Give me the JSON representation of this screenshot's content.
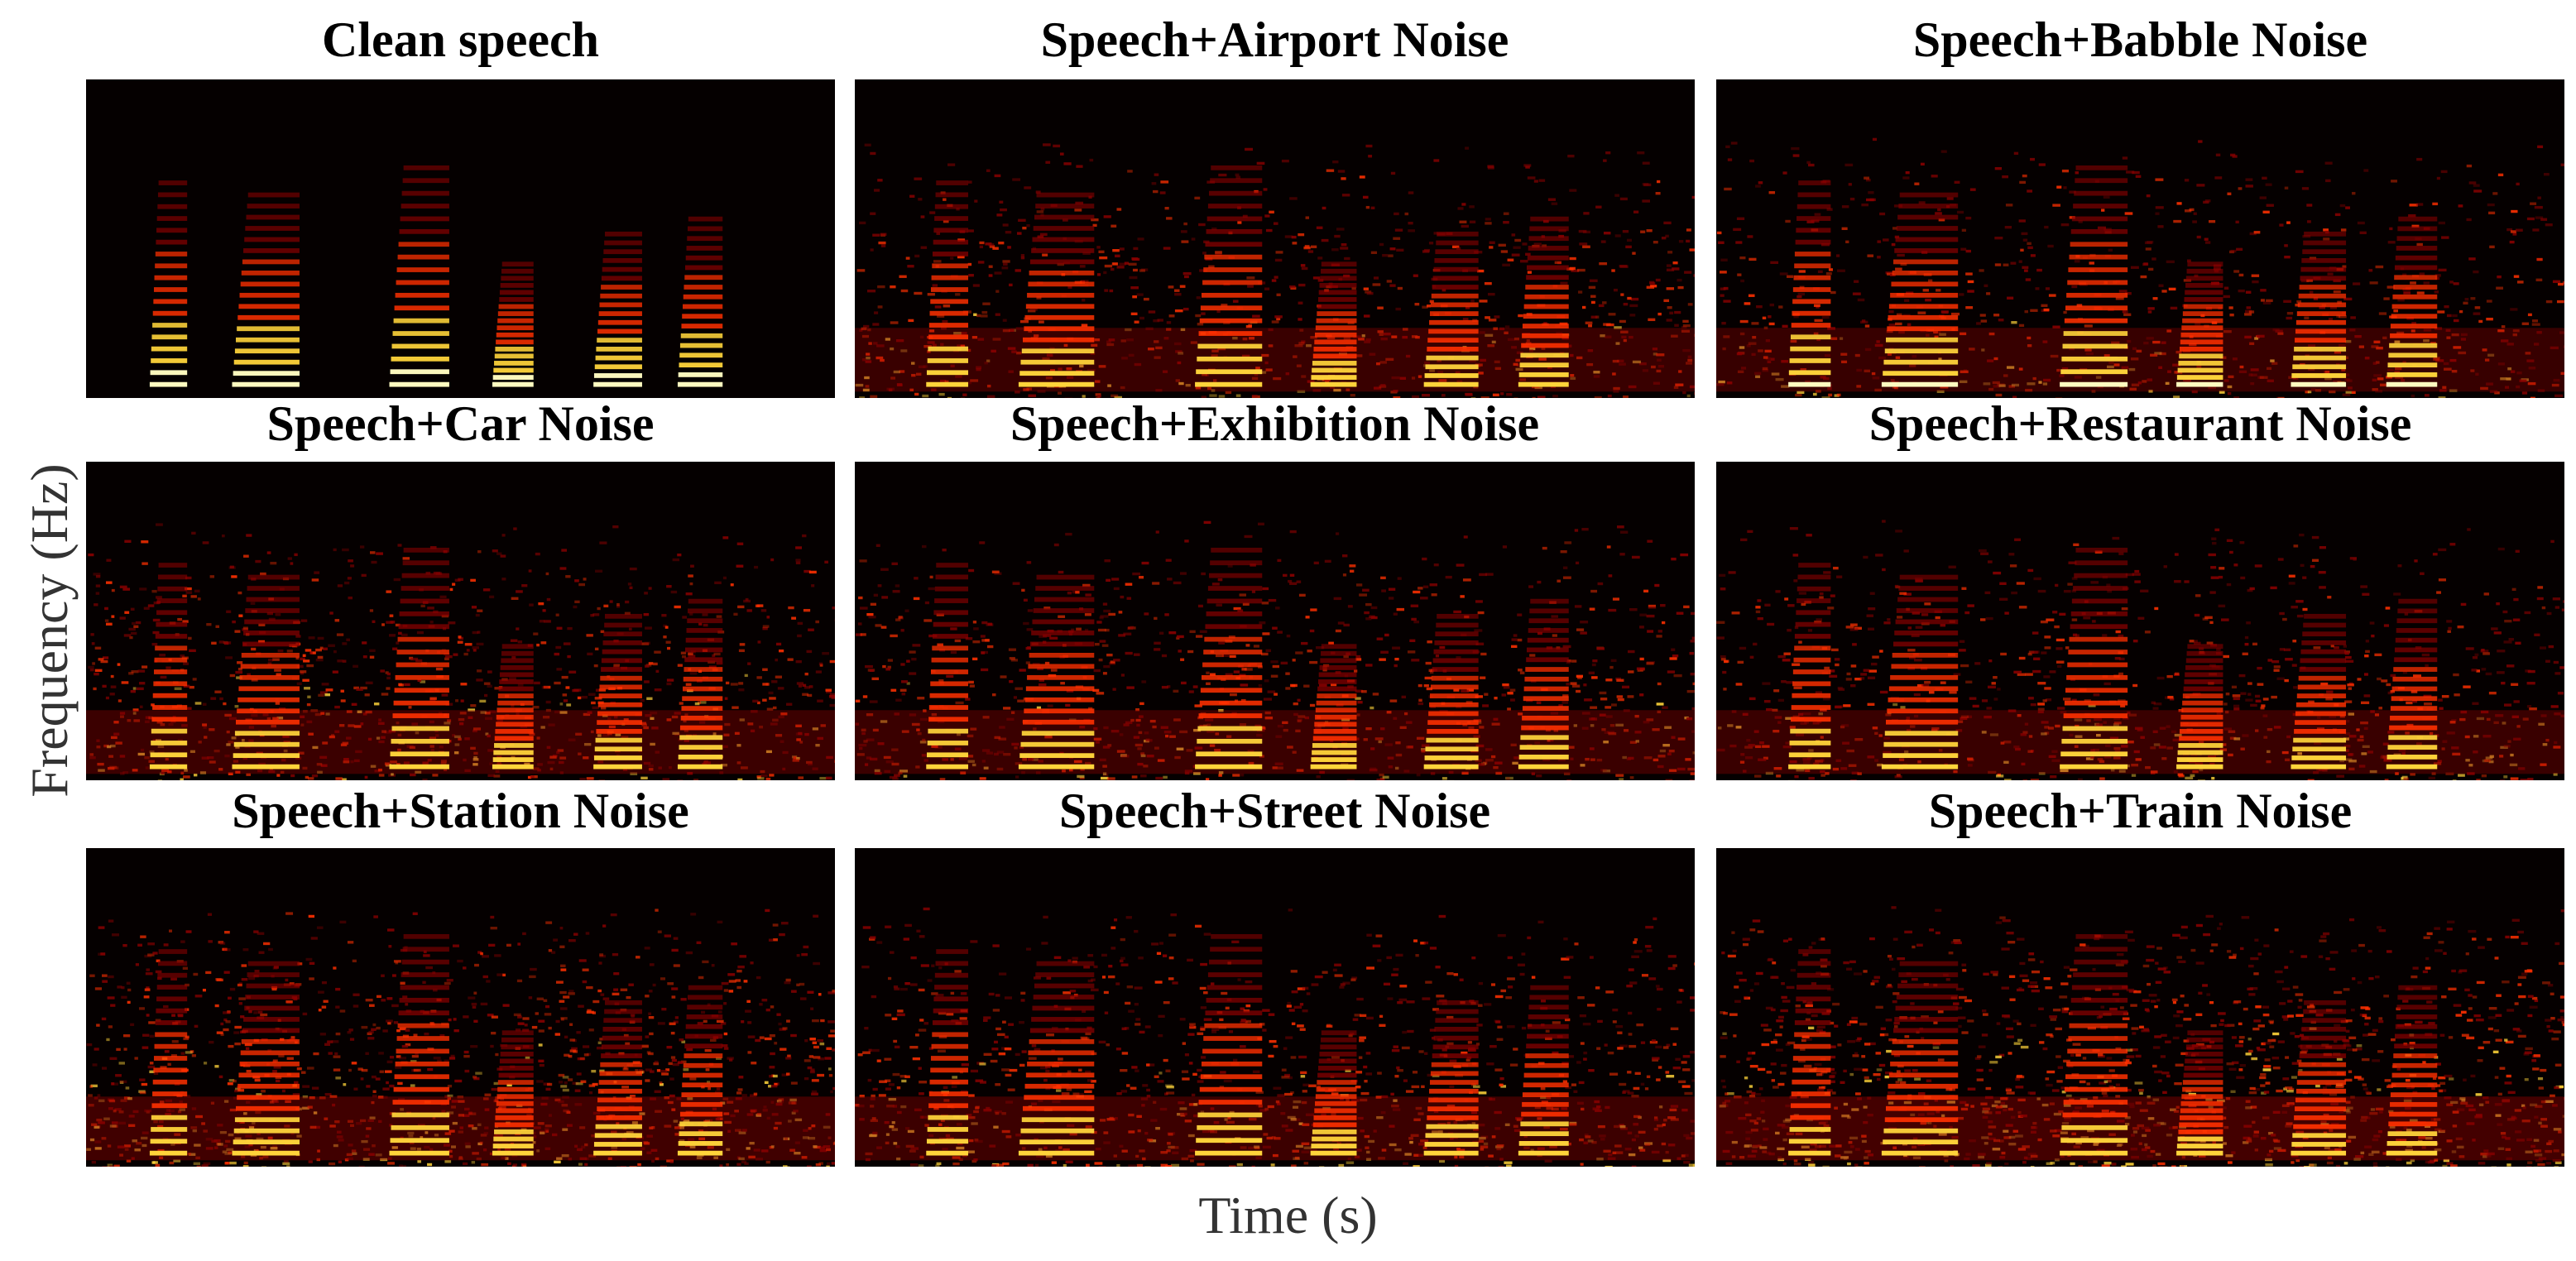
{
  "chart_data": {
    "type": "heatmap",
    "xlabel": "Time (s)",
    "ylabel": "Frequency (Hz)",
    "colormap": "hot",
    "colors": {
      "background": "#050000",
      "low": "#8a0000",
      "mid": "#ff3000",
      "high": "#ffd43a",
      "peak": "#fffbc0"
    },
    "panels": [
      {
        "title": "Clean speech",
        "noise_level": 0.0
      },
      {
        "title": "Speech+Airport Noise",
        "noise_level": 0.35
      },
      {
        "title": "Speech+Babble Noise",
        "noise_level": 0.33
      },
      {
        "title": "Speech+Car Noise",
        "noise_level": 0.4
      },
      {
        "title": "Speech+Exhibition Noise",
        "noise_level": 0.38
      },
      {
        "title": "Speech+Restaurant Noise",
        "noise_level": 0.36
      },
      {
        "title": "Speech+Station Noise",
        "noise_level": 0.5
      },
      {
        "title": "Speech+Street Noise",
        "noise_level": 0.42
      },
      {
        "title": "Speech+Train Noise",
        "noise_level": 0.55
      }
    ]
  }
}
